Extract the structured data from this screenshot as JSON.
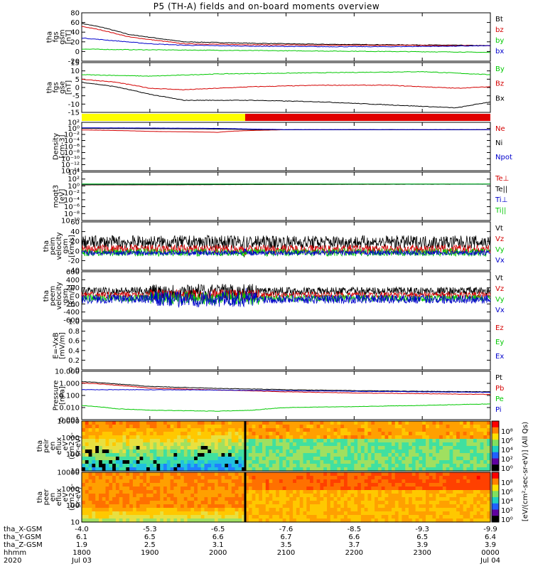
{
  "title": "P5 (TH-A) fields and on-board moments overview",
  "colors": {
    "black": "#000000",
    "red": "#d40000",
    "green": "#00c800",
    "blue": "#0000cc",
    "yellow": "#ffff00",
    "barred": "#e00000"
  },
  "chart_data": [
    {
      "type": "line",
      "name": "fgs_gsm",
      "ylabel": [
        "tha",
        "fgs",
        "gsm",
        "[nT]"
      ],
      "ylim": [
        -20,
        80
      ],
      "yticks": [
        "80",
        "60",
        "40",
        "20",
        "0",
        "-20"
      ],
      "series": [
        {
          "name": "Bt",
          "color": "black",
          "x": [
            0,
            0.3,
            0.7,
            1.5,
            2.5,
            3.5,
            4.5,
            5.5,
            6
          ],
          "y": [
            58,
            50,
            35,
            20,
            17,
            15,
            14,
            13,
            12
          ]
        },
        {
          "name": "bz",
          "color": "red",
          "x": [
            0,
            0.3,
            0.7,
            1.5,
            2.5,
            3.5,
            4.5,
            5.5,
            6
          ],
          "y": [
            52,
            44,
            30,
            16,
            14,
            13,
            13,
            12,
            12
          ]
        },
        {
          "name": "by",
          "color": "green",
          "x": [
            0,
            0.5,
            1.5,
            2.5,
            3.5,
            4.5,
            5.5,
            6
          ],
          "y": [
            5,
            4,
            3,
            2,
            1,
            0,
            -1,
            -2
          ]
        },
        {
          "name": "bx",
          "color": "blue",
          "x": [
            0,
            0.5,
            1,
            1.5,
            2.5,
            3.5,
            4.5,
            5.5,
            6
          ],
          "y": [
            28,
            22,
            16,
            13,
            11,
            10,
            10,
            11,
            12
          ]
        }
      ]
    },
    {
      "type": "line",
      "name": "fgs_gse",
      "ylabel": [
        "tha",
        "fgs",
        "gse",
        "[nT]"
      ],
      "ylim": [
        -18,
        15
      ],
      "yticks": [
        "15",
        "10",
        "5",
        "0",
        "-5",
        "-10",
        "-15"
      ],
      "series": [
        {
          "name": "By",
          "color": "green",
          "x": [
            0,
            1,
            2,
            3,
            4,
            5,
            6
          ],
          "y": [
            7,
            6,
            7.5,
            8,
            8.5,
            9,
            7
          ]
        },
        {
          "name": "Bz",
          "color": "red",
          "x": [
            0,
            0.5,
            1,
            1.5,
            2.5,
            3.5,
            4.5,
            5.5,
            6
          ],
          "y": [
            4,
            2,
            -2,
            -3,
            -1,
            0,
            0,
            -2,
            -1
          ]
        },
        {
          "name": "Bx",
          "color": "black",
          "x": [
            0,
            0.5,
            1,
            1.5,
            2.5,
            3.5,
            4.5,
            5.5,
            6
          ],
          "y": [
            2,
            -1,
            -6,
            -10,
            -10,
            -11,
            -13,
            -15,
            -11
          ]
        }
      ]
    },
    {
      "type": "bar",
      "name": "mode_bar",
      "segments": [
        {
          "from": 0,
          "to": 2.4,
          "color": "yellow"
        },
        {
          "from": 2.4,
          "to": 6,
          "color": "barred"
        }
      ]
    },
    {
      "type": "line",
      "name": "density",
      "scale": "log",
      "ylabel": [
        "Density",
        "[cm-3]"
      ],
      "ylim": [
        -14,
        2
      ],
      "yticks": [
        "10²",
        "10⁰",
        "10⁻²",
        "10⁻⁴",
        "10⁻⁶",
        "10⁻⁸",
        "10⁻¹⁰",
        "10⁻¹²",
        "10⁻¹⁴"
      ],
      "series": [
        {
          "name": "Ne",
          "color": "red",
          "x": [
            0,
            1,
            2,
            2.5,
            3,
            4,
            5,
            6
          ],
          "y": [
            0.3,
            0.1,
            0.05,
            0.2,
            0.35,
            0.35,
            0.35,
            0.35
          ]
        },
        {
          "name": "Ni",
          "color": "black",
          "x": [
            0,
            1,
            2,
            2.5,
            3,
            4,
            5,
            6
          ],
          "y": [
            1,
            0.8,
            0.6,
            0.4,
            0.35,
            0.35,
            0.35,
            0.35
          ]
        },
        {
          "name": "Npot",
          "color": "blue",
          "x": [
            0,
            1,
            2,
            2.5,
            3,
            4,
            5,
            6
          ],
          "y": [
            1.5,
            1.3,
            1,
            0.6,
            0.4,
            0.4,
            0.4,
            0.4
          ]
        }
      ]
    },
    {
      "type": "line",
      "name": "moments_temp",
      "scale": "log",
      "ylabel": [
        "moqt3",
        "[eV]"
      ],
      "ylim": [
        -10,
        4
      ],
      "yticks": [
        "10⁴",
        "10²",
        "10⁰",
        "10⁻²",
        "10⁻⁴",
        "10⁻⁶",
        "10⁻⁸",
        "10⁻¹⁰"
      ],
      "series": [
        {
          "name": "Te⊥",
          "color": "red",
          "x": [
            0,
            1,
            2,
            3,
            4,
            5,
            6
          ],
          "y": [
            2,
            2.2,
            2.4,
            2.7,
            3,
            3.1,
            3.2
          ]
        },
        {
          "name": "Te||",
          "color": "black",
          "x": [
            0,
            1,
            2,
            3,
            4,
            5,
            6
          ],
          "y": [
            2.1,
            2.3,
            2.5,
            2.8,
            3.05,
            3.15,
            3.25
          ]
        },
        {
          "name": "Ti⊥",
          "color": "blue",
          "x": [
            0,
            6
          ],
          "y": [
            3.6,
            3.6
          ]
        },
        {
          "name": "Ti||",
          "color": "green",
          "x": [
            0,
            6
          ],
          "y": [
            3.55,
            3.55
          ]
        }
      ]
    },
    {
      "type": "line",
      "name": "peim_velocity",
      "ylabel": [
        "tha",
        "peim",
        "velocity",
        "gsm",
        "[km/s]"
      ],
      "ylim": [
        -40,
        60
      ],
      "yticks": [
        "60",
        "40",
        "20",
        "0",
        "-20",
        "-40"
      ],
      "series": [
        {
          "name": "Vt",
          "color": "black",
          "base": 18,
          "noise": 14
        },
        {
          "name": "Vz",
          "color": "red",
          "base": 3,
          "noise": 10
        },
        {
          "name": "Vy",
          "color": "green",
          "base": -3,
          "noise": 8
        },
        {
          "name": "Vx",
          "color": "blue",
          "base": -4,
          "noise": 5
        }
      ]
    },
    {
      "type": "line",
      "name": "peem_velocity",
      "ylabel": [
        "tha",
        "peem",
        "velocity",
        "gsm",
        "[km/s]"
      ],
      "ylim": [
        -600,
        600
      ],
      "yticks": [
        "600",
        "400",
        "200",
        "0",
        "-200",
        "-400",
        "-600"
      ],
      "series": [
        {
          "name": "Vt",
          "color": "black",
          "base": 120,
          "noise": 100
        },
        {
          "name": "Vz",
          "color": "red",
          "base": 20,
          "noise": 80
        },
        {
          "name": "Vy",
          "color": "green",
          "base": -60,
          "noise": 90
        },
        {
          "name": "Vx",
          "color": "blue",
          "base": -80,
          "noise": 110
        }
      ]
    },
    {
      "type": "line",
      "name": "e_field",
      "ylabel": [
        "E=-VxB",
        "[mV/m]"
      ],
      "ylim": [
        0,
        1
      ],
      "yticks": [
        "1.0",
        "0.8",
        "0.6",
        "0.4",
        "0.2",
        "0.0"
      ],
      "series": [
        {
          "name": "Ez",
          "color": "red"
        },
        {
          "name": "Ey",
          "color": "green"
        },
        {
          "name": "Ex",
          "color": "blue"
        }
      ]
    },
    {
      "type": "line",
      "name": "pressure",
      "scale": "log",
      "ylabel": [
        "Pressure",
        "[nPa]"
      ],
      "ylim": [
        -3,
        1
      ],
      "yticks": [
        "10.000",
        "1.000",
        "0.100",
        "0.010",
        "0.001"
      ],
      "series": [
        {
          "name": "Pt",
          "color": "black",
          "x": [
            0,
            0.5,
            1,
            2,
            3,
            4,
            5,
            6
          ],
          "y": [
            1.4,
            0.9,
            0.55,
            0.38,
            0.3,
            0.25,
            0.22,
            0.2
          ]
        },
        {
          "name": "Pb",
          "color": "red",
          "x": [
            0,
            0.5,
            1,
            2,
            3,
            4,
            5,
            6
          ],
          "y": [
            1.1,
            0.7,
            0.4,
            0.28,
            0.2,
            0.16,
            0.14,
            0.12
          ]
        },
        {
          "name": "Pe",
          "color": "green",
          "x": [
            0,
            0.5,
            1,
            2,
            2.5,
            3,
            4,
            5,
            6
          ],
          "y": [
            0.015,
            0.008,
            0.006,
            0.005,
            0.006,
            0.01,
            0.012,
            0.015,
            0.02
          ]
        },
        {
          "name": "Pi",
          "color": "blue",
          "x": [
            0,
            1,
            2,
            3,
            4,
            5,
            6
          ],
          "y": [
            0.3,
            0.3,
            0.28,
            0.25,
            0.22,
            0.2,
            0.18
          ]
        }
      ]
    },
    {
      "type": "heatmap",
      "name": "peir_spectrogram",
      "ylabel": [
        "tha",
        "peir",
        "en",
        "eflux",
        "eV",
        "(cm2-s-",
        "sr-eV)"
      ],
      "yticks": [
        "10000",
        "1000",
        "100",
        "10"
      ]
    },
    {
      "type": "heatmap",
      "name": "peer_spectrogram",
      "ylabel": [
        "tha",
        "peer",
        "en",
        "eflux",
        "eV",
        "(cm2-s-",
        "sr-eV)"
      ],
      "yticks": [
        "10000",
        "1000",
        "100",
        "10"
      ]
    }
  ],
  "colorbar": {
    "label": "[eV/(cm²-sec-sr-eV)] (All Qs)",
    "ticks_top": [
      "10⁸",
      "10⁶",
      "10⁴",
      "10²",
      "10⁰"
    ],
    "ticks_bottom": [
      "10⁸",
      "10⁶",
      "10⁴",
      "10²",
      "10⁰"
    ]
  },
  "x_axis": {
    "rows": [
      {
        "label": "tha_X-GSM",
        "values": [
          "-4.0",
          "-5.3",
          "-6.5",
          "-7.6",
          "-8.5",
          "-9.3",
          "-9.9"
        ]
      },
      {
        "label": "tha_Y-GSM",
        "values": [
          "6.1",
          "6.5",
          "6.6",
          "6.7",
          "6.6",
          "6.5",
          "6.4"
        ]
      },
      {
        "label": "tha_Z-GSM",
        "values": [
          "1.9",
          "2.5",
          "3.1",
          "3.5",
          "3.7",
          "3.9",
          "3.9"
        ]
      },
      {
        "label": "hhmm",
        "values": [
          "1800",
          "1900",
          "2000",
          "2100",
          "2200",
          "2300",
          "0000"
        ]
      },
      {
        "label": "2020",
        "values": [
          "Jul 03",
          "",
          "",
          "",
          "",
          "",
          "Jul 04"
        ]
      }
    ]
  }
}
